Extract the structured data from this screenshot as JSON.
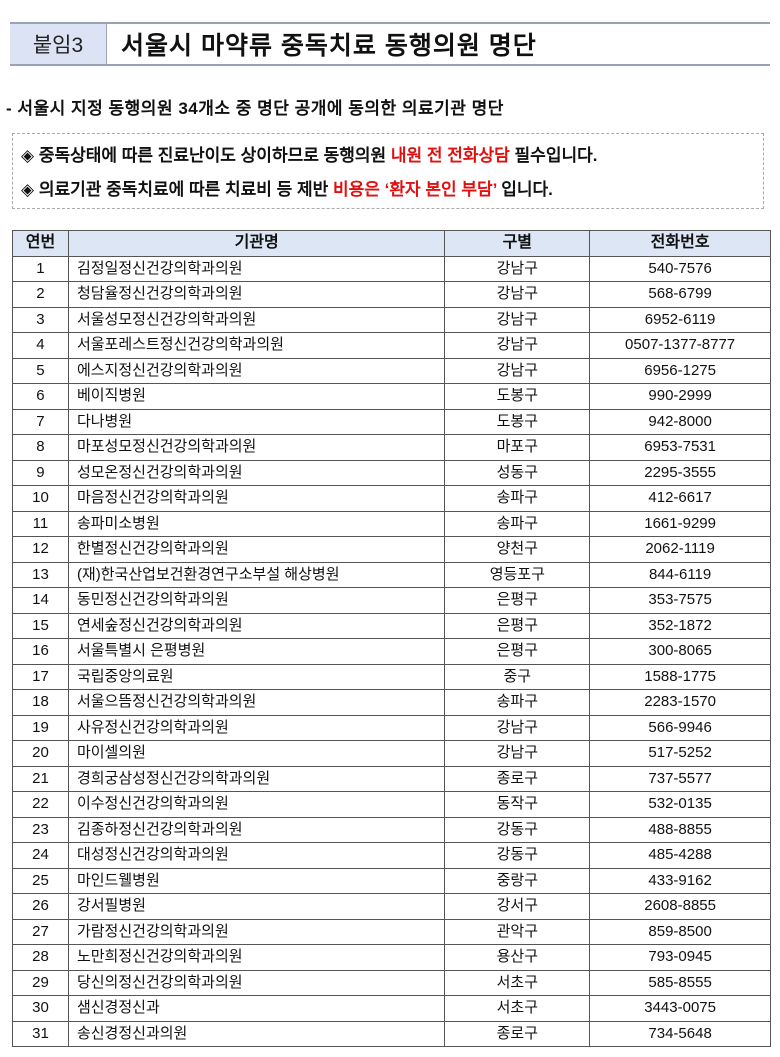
{
  "header": {
    "tag": "붙임3",
    "title": "서울시 마약류 중독치료 동행의원 명단"
  },
  "subtitle": "- 서울시 지정 동행의원 34개소 중 명단 공개에 동의한 의료기관 명단",
  "notices": [
    {
      "bullet": "◈",
      "pre": "중독상태에 따른 진료난이도 상이하므로 동행의원 ",
      "highlight": "내원 전 전화상담",
      "post": " 필수입니다."
    },
    {
      "bullet": "◈",
      "pre": "의료기관 중독치료에 따른 치료비 등 제반 ",
      "highlight": "비용은 ‘환자 본인 부담’",
      "post": " 입니다."
    }
  ],
  "highlight_color": "#e01010",
  "table": {
    "columns": [
      "연번",
      "기관명",
      "구별",
      "전화번호"
    ],
    "rows": [
      [
        "1",
        "김정일정신건강의학과의원",
        "강남구",
        "540-7576"
      ],
      [
        "2",
        "청담율정신건강의학과의원",
        "강남구",
        "568-6799"
      ],
      [
        "3",
        "서울성모정신건강의학과의원",
        "강남구",
        "6952-6119"
      ],
      [
        "4",
        "서울포레스트정신건강의학과의원",
        "강남구",
        "0507-1377-8777"
      ],
      [
        "5",
        "에스지정신건강의학과의원",
        "강남구",
        "6956-1275"
      ],
      [
        "6",
        "베이직병원",
        "도봉구",
        "990-2999"
      ],
      [
        "7",
        "다나병원",
        "도봉구",
        "942-8000"
      ],
      [
        "8",
        "마포성모정신건강의학과의원",
        "마포구",
        "6953-7531"
      ],
      [
        "9",
        "성모온정신건강의학과의원",
        "성동구",
        "2295-3555"
      ],
      [
        "10",
        "마음정신건강의학과의원",
        "송파구",
        "412-6617"
      ],
      [
        "11",
        "송파미소병원",
        "송파구",
        "1661-9299"
      ],
      [
        "12",
        "한별정신건강의학과의원",
        "양천구",
        "2062-1119"
      ],
      [
        "13",
        "(재)한국산업보건환경연구소부설 해상병원",
        "영등포구",
        "844-6119"
      ],
      [
        "14",
        "동민정신건강의학과의원",
        "은평구",
        "353-7575"
      ],
      [
        "15",
        "연세숲정신건강의학과의원",
        "은평구",
        "352-1872"
      ],
      [
        "16",
        "서울특별시 은평병원",
        "은평구",
        "300-8065"
      ],
      [
        "17",
        "국립중앙의료원",
        "중구",
        "1588-1775"
      ],
      [
        "18",
        "서울으뜸정신건강의학과의원",
        "송파구",
        "2283-1570"
      ],
      [
        "19",
        "사유정신건강의학과의원",
        "강남구",
        "566-9946"
      ],
      [
        "20",
        "마이셀의원",
        "강남구",
        "517-5252"
      ],
      [
        "21",
        "경희궁삼성정신건강의학과의원",
        "종로구",
        "737-5577"
      ],
      [
        "22",
        "이수정신건강의학과의원",
        "동작구",
        "532-0135"
      ],
      [
        "23",
        "김종하정신건강의학과의원",
        "강동구",
        "488-8855"
      ],
      [
        "24",
        "대성정신건강의학과의원",
        "강동구",
        "485-4288"
      ],
      [
        "25",
        "마인드웰병원",
        "중랑구",
        "433-9162"
      ],
      [
        "26",
        "강서필병원",
        "강서구",
        "2608-8855"
      ],
      [
        "27",
        "가람정신건강의학과의원",
        "관악구",
        "859-8500"
      ],
      [
        "28",
        "노만희정신건강의학과의원",
        "용산구",
        "793-0945"
      ],
      [
        "29",
        "당신의정신건강의학과의원",
        "서초구",
        "585-8555"
      ],
      [
        "30",
        "샘신경정신과",
        "서초구",
        "3443-0075"
      ],
      [
        "31",
        "송신경정신과의원",
        "종로구",
        "734-5648"
      ]
    ]
  }
}
